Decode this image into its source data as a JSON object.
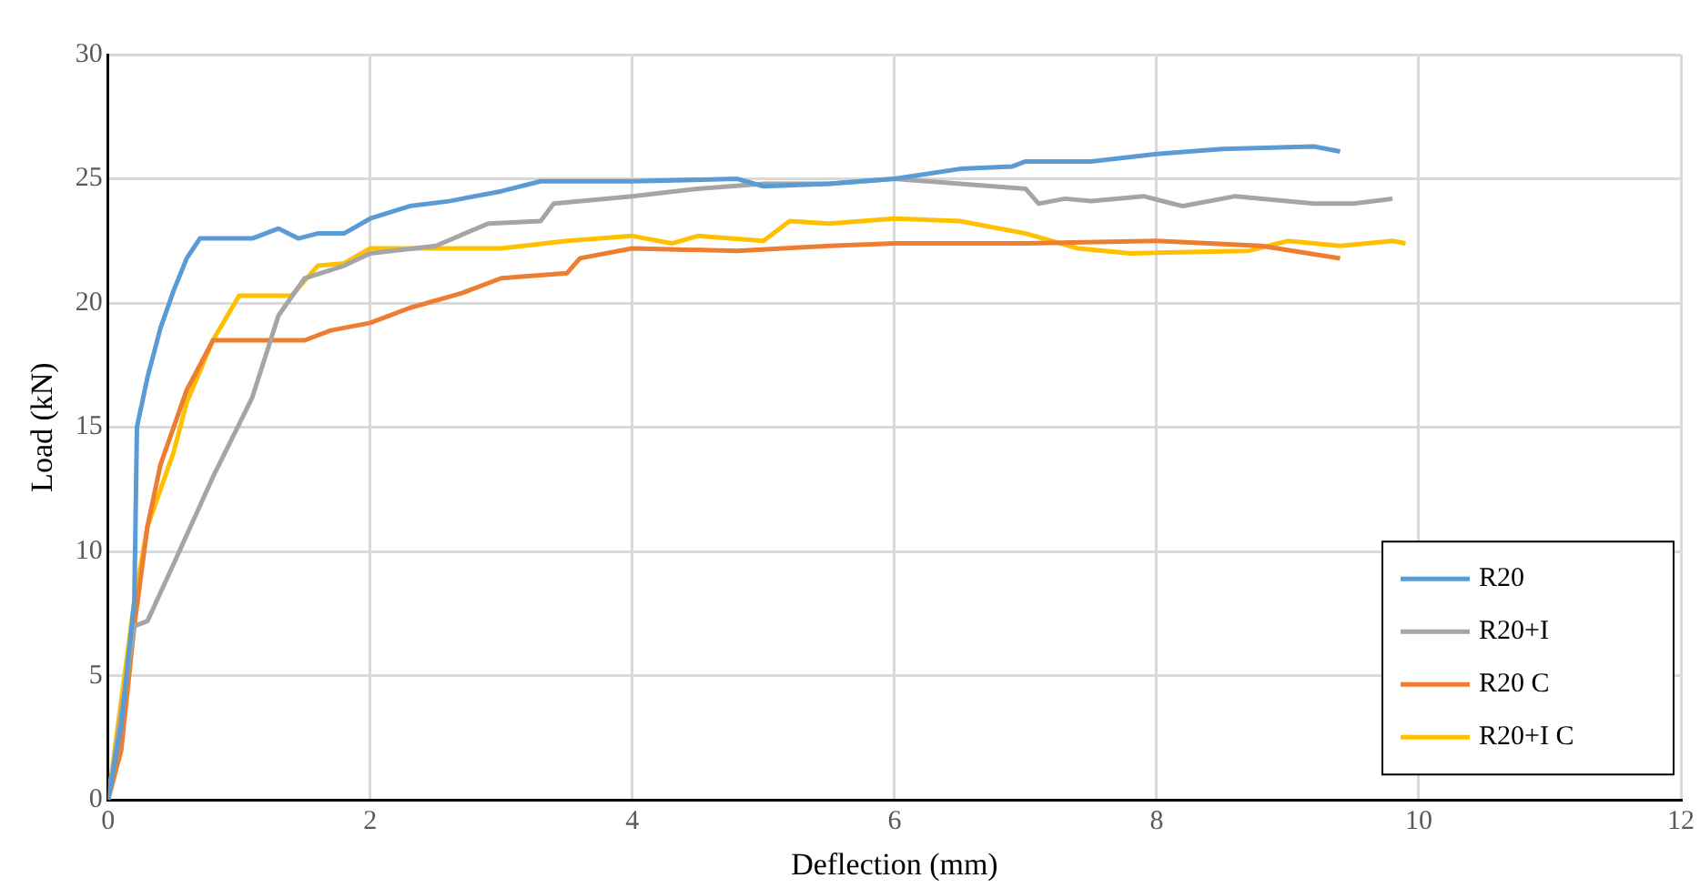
{
  "chart_data": {
    "type": "line",
    "xlabel": "Deflection (mm)",
    "ylabel": "Load (kN)",
    "xlim": [
      0,
      12
    ],
    "xticks": [
      0,
      2,
      4,
      6,
      8,
      10,
      12
    ],
    "ylim": [
      0,
      30
    ],
    "yticks": [
      0,
      5,
      10,
      15,
      20,
      25,
      30
    ],
    "grid": true,
    "legend": "bottom right",
    "marker": "none",
    "line_style": "solid",
    "series": [
      {
        "name": "R20",
        "color": "#5b9bd5",
        "x": [
          0,
          0.1,
          0.2,
          0.22,
          0.3,
          0.4,
          0.5,
          0.6,
          0.7,
          1.1,
          1.3,
          1.45,
          1.6,
          1.8,
          2,
          2.3,
          2.6,
          3,
          3.3,
          4,
          4.8,
          5,
          5.5,
          6,
          6.5,
          6.9,
          7,
          7.5,
          8,
          8.5,
          9.2,
          9.4
        ],
        "values": [
          0,
          3,
          8,
          15,
          17,
          19,
          20.5,
          21.8,
          22.6,
          22.6,
          23,
          22.6,
          22.8,
          22.8,
          23.4,
          23.9,
          24.1,
          24.5,
          24.9,
          24.9,
          25,
          24.7,
          24.8,
          25,
          25.4,
          25.5,
          25.7,
          25.7,
          26,
          26.2,
          26.3,
          26.1
        ]
      },
      {
        "name": "R20+I",
        "color": "#a5a5a5",
        "x": [
          0,
          0.2,
          0.3,
          0.5,
          0.8,
          1.1,
          1.3,
          1.5,
          1.8,
          2,
          2.5,
          2.9,
          3.3,
          3.4,
          4,
          4.5,
          5,
          5.5,
          6,
          6.5,
          7,
          7.1,
          7.3,
          7.5,
          7.9,
          8.2,
          8.6,
          9.2,
          9.5,
          9.8
        ],
        "values": [
          0,
          7,
          7.2,
          9.5,
          13,
          16.2,
          19.5,
          21,
          21.5,
          22,
          22.3,
          23.2,
          23.3,
          24,
          24.3,
          24.6,
          24.8,
          24.8,
          25,
          24.8,
          24.6,
          24,
          24.2,
          24.1,
          24.3,
          23.9,
          24.3,
          24,
          24,
          24.2
        ]
      },
      {
        "name": "R20 C",
        "color": "#ed7d31",
        "x": [
          0,
          0.1,
          0.2,
          0.3,
          0.4,
          0.5,
          0.6,
          0.7,
          0.8,
          1.5,
          1.7,
          2,
          2.3,
          2.7,
          3,
          3.5,
          3.6,
          4,
          4.8,
          5.5,
          6,
          7,
          8,
          8.8,
          9.4
        ],
        "values": [
          0,
          2,
          7,
          11,
          13.5,
          15,
          16.5,
          17.5,
          18.5,
          18.5,
          18.9,
          19.2,
          19.8,
          20.4,
          21,
          21.2,
          21.8,
          22.2,
          22.1,
          22.3,
          22.4,
          22.4,
          22.5,
          22.3,
          21.8
        ]
      },
      {
        "name": "R20+I C",
        "color": "#ffc000",
        "x": [
          0,
          0.1,
          0.2,
          0.3,
          0.5,
          0.6,
          0.8,
          1,
          1.4,
          1.6,
          1.8,
          2,
          3,
          3.5,
          4,
          4.3,
          4.5,
          5,
          5.2,
          5.5,
          6,
          6.5,
          7,
          7.4,
          7.8,
          8.7,
          9,
          9.4,
          9.8,
          9.9
        ],
        "values": [
          0,
          4,
          8,
          11,
          14,
          16,
          18.5,
          20.3,
          20.3,
          21.5,
          21.6,
          22.2,
          22.2,
          22.5,
          22.7,
          22.4,
          22.7,
          22.5,
          23.3,
          23.2,
          23.4,
          23.3,
          22.8,
          22.2,
          22,
          22.1,
          22.5,
          22.3,
          22.5,
          22.4
        ]
      }
    ]
  }
}
